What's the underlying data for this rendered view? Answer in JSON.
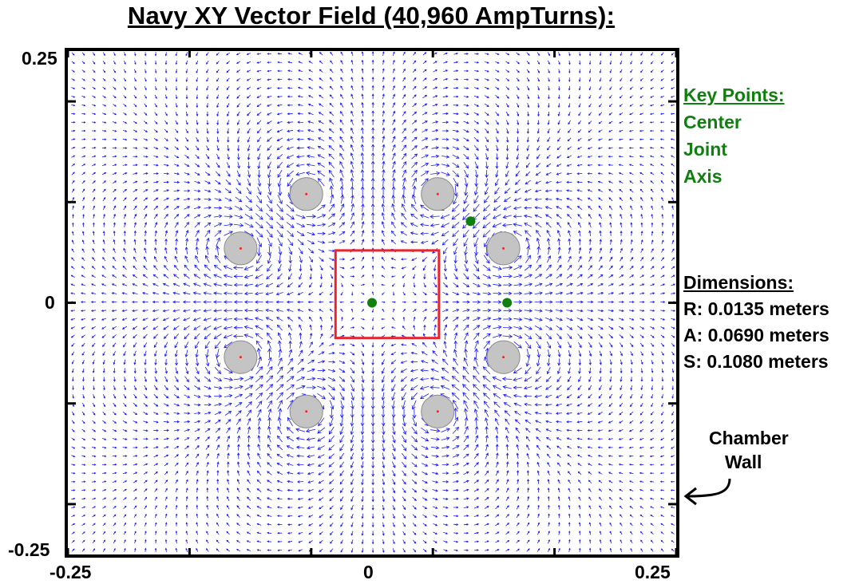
{
  "chart_data": {
    "type": "vector_field",
    "title": "Navy XY Vector Field (40,960 AmpTurns):",
    "xlabel": "",
    "ylabel": "",
    "xlim": [
      -0.25,
      0.25
    ],
    "ylim": [
      -0.25,
      0.25
    ],
    "x_tick_labels": [
      "-0.25",
      "0",
      "0.25"
    ],
    "y_tick_labels": [
      "0.25",
      "0",
      "-0.25"
    ],
    "grid": false,
    "arrow_color": "#1a1aff",
    "coil_radius": 0.0135,
    "coils": [
      {
        "x": -0.054,
        "y": 0.108
      },
      {
        "x": 0.054,
        "y": 0.108
      },
      {
        "x": 0.108,
        "y": 0.054
      },
      {
        "x": 0.108,
        "y": -0.054
      },
      {
        "x": 0.054,
        "y": -0.108
      },
      {
        "x": -0.054,
        "y": -0.108
      },
      {
        "x": -0.108,
        "y": -0.054
      },
      {
        "x": -0.108,
        "y": 0.054
      }
    ],
    "coil_currents": [
      1,
      -1,
      1,
      -1,
      1,
      -1,
      1,
      -1
    ],
    "key_points": [
      {
        "name": "Center",
        "x": 0.0,
        "y": 0.0
      },
      {
        "name": "Joint",
        "x": 0.081,
        "y": 0.081
      },
      {
        "name": "Axis",
        "x": 0.111,
        "y": 0.0
      }
    ],
    "highlight_box": {
      "x0": -0.03,
      "x1": 0.055,
      "y0": -0.035,
      "y1": 0.052,
      "color": "#e8242c"
    }
  },
  "legend": {
    "key_title": "Key Points:",
    "key_items": [
      "Center",
      "Joint",
      "Axis"
    ],
    "dims_title": "Dimensions:",
    "dims_items": [
      "R: 0.0135 meters",
      "A: 0.0690 meters",
      "S: 0.1080 meters"
    ],
    "annotation_line1": "Chamber",
    "annotation_line2": "Wall"
  },
  "colors": {
    "key_green": "#107f10",
    "coil_fill": "#c4c4c4",
    "coil_center": "#ff2020"
  }
}
